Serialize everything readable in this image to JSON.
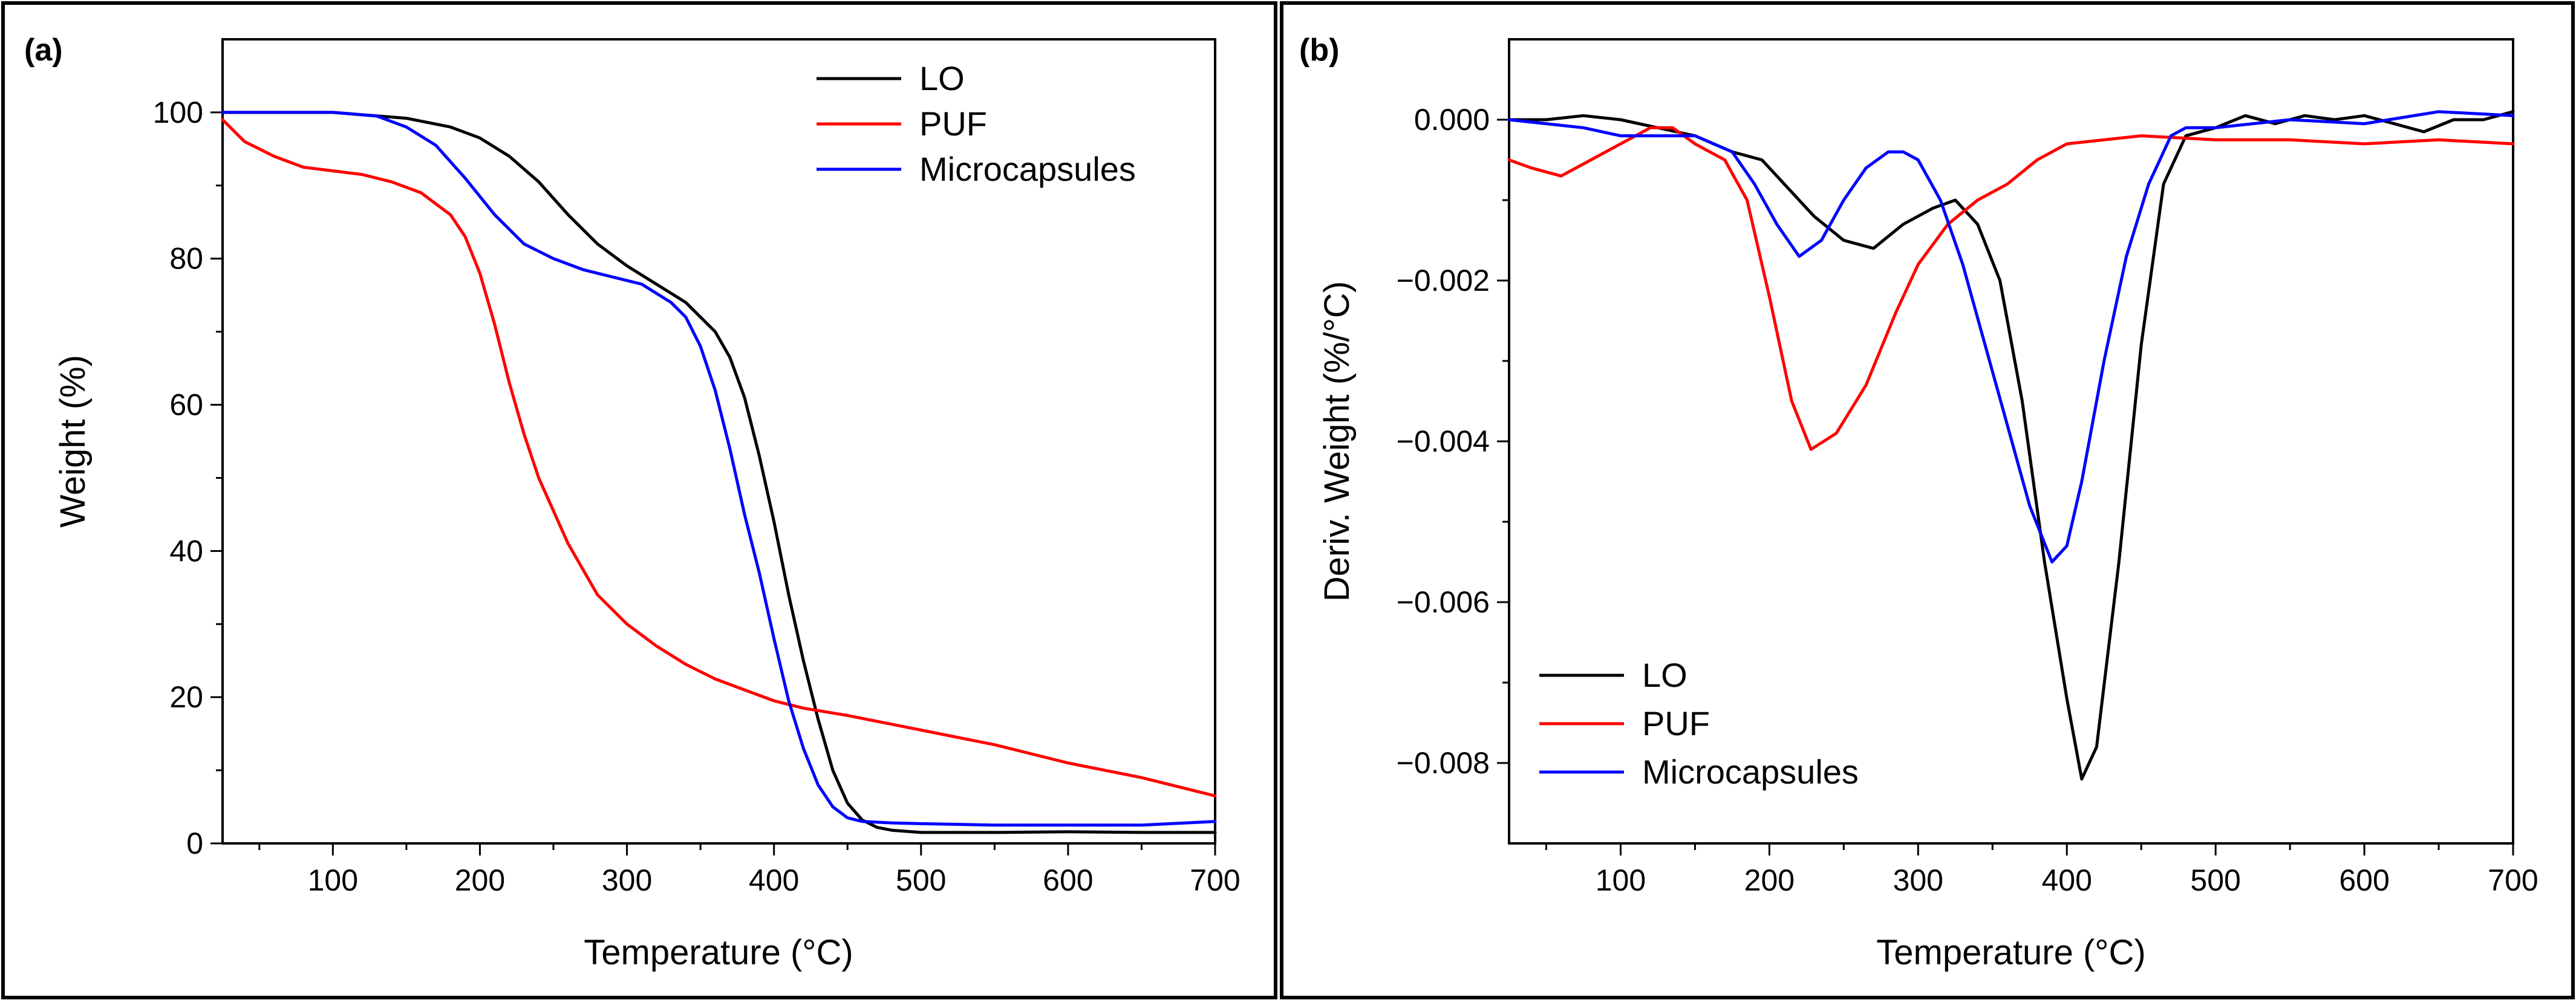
{
  "chart_data": [
    {
      "type": "line",
      "panel_label": "(a)",
      "xlabel": "Temperature (°C)",
      "ylabel": "Weight (%)",
      "xlim": [
        25,
        700
      ],
      "ylim": [
        0,
        110
      ],
      "xticks": [
        100,
        200,
        300,
        400,
        500,
        600,
        700
      ],
      "yticks": [
        0,
        20,
        40,
        60,
        80,
        100
      ],
      "ytick_labels": [
        "0",
        "20",
        "40",
        "60",
        "80",
        "100"
      ],
      "legend_position": "top-right",
      "series": [
        {
          "name": "LO",
          "color": "#000000",
          "x": [
            25,
            50,
            100,
            150,
            180,
            200,
            220,
            240,
            260,
            280,
            300,
            320,
            340,
            360,
            370,
            380,
            390,
            400,
            410,
            420,
            430,
            440,
            450,
            460,
            470,
            480,
            500,
            550,
            600,
            650,
            700
          ],
          "y": [
            100,
            100,
            100,
            99.2,
            98,
            96.5,
            94,
            90.5,
            86,
            82,
            79,
            76.5,
            74,
            70,
            66.5,
            61,
            53,
            44,
            34,
            25,
            17,
            10,
            5.5,
            3.2,
            2.2,
            1.8,
            1.5,
            1.5,
            1.6,
            1.5,
            1.5
          ]
        },
        {
          "name": "PUF",
          "color": "#ff0000",
          "x": [
            25,
            40,
            60,
            80,
            100,
            120,
            140,
            160,
            180,
            190,
            200,
            210,
            220,
            230,
            240,
            260,
            280,
            300,
            320,
            340,
            360,
            380,
            400,
            420,
            450,
            500,
            550,
            600,
            650,
            700
          ],
          "y": [
            99,
            96,
            94,
            92.5,
            92,
            91.5,
            90.5,
            89,
            86,
            83,
            78,
            71,
            63,
            56,
            50,
            41,
            34,
            30,
            27,
            24.5,
            22.5,
            21,
            19.5,
            18.5,
            17.5,
            15.5,
            13.5,
            11,
            9,
            6.5
          ]
        },
        {
          "name": "Microcapsules",
          "color": "#0000ff",
          "x": [
            25,
            50,
            100,
            130,
            150,
            170,
            190,
            210,
            230,
            250,
            270,
            290,
            310,
            330,
            340,
            350,
            360,
            370,
            380,
            390,
            400,
            410,
            420,
            430,
            440,
            450,
            460,
            480,
            500,
            550,
            600,
            650,
            700
          ],
          "y": [
            100,
            100,
            100,
            99.5,
            98,
            95.5,
            91,
            86,
            82,
            80,
            78.5,
            77.5,
            76.5,
            74,
            72,
            68,
            62,
            54,
            45,
            37,
            28,
            19.5,
            13,
            8,
            5,
            3.5,
            3,
            2.8,
            2.7,
            2.5,
            2.5,
            2.5,
            3
          ]
        }
      ]
    },
    {
      "type": "line",
      "panel_label": "(b)",
      "xlabel": "Temperature (°C)",
      "ylabel": "Deriv. Weight (%/°C)",
      "xlim": [
        25,
        700
      ],
      "ylim": [
        -0.009,
        0.001
      ],
      "xticks": [
        100,
        200,
        300,
        400,
        500,
        600,
        700
      ],
      "yticks": [
        0,
        -0.002,
        -0.004,
        -0.006,
        -0.008
      ],
      "ytick_labels": [
        "0.000",
        "−0.002",
        "−0.004",
        "−0.006",
        "−0.008"
      ],
      "legend_position": "bottom-left",
      "series": [
        {
          "name": "LO",
          "color": "#000000",
          "x": [
            25,
            50,
            75,
            100,
            125,
            150,
            175,
            195,
            210,
            230,
            250,
            270,
            290,
            310,
            325,
            340,
            355,
            370,
            385,
            400,
            410,
            420,
            435,
            450,
            465,
            480,
            500,
            520,
            540,
            560,
            580,
            600,
            620,
            640,
            660,
            680,
            700
          ],
          "y": [
            0,
            0,
            5e-05,
            0,
            -0.0001,
            -0.0002,
            -0.0004,
            -0.0005,
            -0.0008,
            -0.0012,
            -0.0015,
            -0.0016,
            -0.0013,
            -0.0011,
            -0.001,
            -0.0013,
            -0.002,
            -0.0035,
            -0.0055,
            -0.0072,
            -0.0082,
            -0.0078,
            -0.0055,
            -0.0028,
            -0.0008,
            -0.0002,
            -0.0001,
            5e-05,
            -5e-05,
            5e-05,
            0,
            5e-05,
            -5e-05,
            -0.00015,
            0,
            0,
            0.0001
          ]
        },
        {
          "name": "PUF",
          "color": "#ff0000",
          "x": [
            25,
            40,
            60,
            80,
            100,
            120,
            135,
            150,
            170,
            185,
            200,
            215,
            228,
            245,
            265,
            285,
            300,
            320,
            340,
            360,
            380,
            400,
            450,
            500,
            550,
            600,
            650,
            700
          ],
          "y": [
            -0.0005,
            -0.0006,
            -0.0007,
            -0.0005,
            -0.0003,
            -0.0001,
            -0.0001,
            -0.0003,
            -0.0005,
            -0.001,
            -0.0022,
            -0.0035,
            -0.0041,
            -0.0039,
            -0.0033,
            -0.0024,
            -0.0018,
            -0.0013,
            -0.001,
            -0.0008,
            -0.0005,
            -0.0003,
            -0.0002,
            -0.00025,
            -0.00025,
            -0.0003,
            -0.00025,
            -0.0003
          ]
        },
        {
          "name": "Microcapsules",
          "color": "#0000ff",
          "x": [
            25,
            50,
            75,
            100,
            125,
            150,
            175,
            190,
            205,
            220,
            235,
            250,
            265,
            280,
            290,
            300,
            315,
            330,
            345,
            360,
            375,
            390,
            400,
            410,
            425,
            440,
            455,
            470,
            480,
            500,
            550,
            600,
            650,
            700
          ],
          "y": [
            0,
            -5e-05,
            -0.0001,
            -0.0002,
            -0.0002,
            -0.0002,
            -0.0004,
            -0.0008,
            -0.0013,
            -0.0017,
            -0.0015,
            -0.001,
            -0.0006,
            -0.0004,
            -0.0004,
            -0.0005,
            -0.001,
            -0.0018,
            -0.0028,
            -0.0038,
            -0.0048,
            -0.0055,
            -0.0053,
            -0.0045,
            -0.003,
            -0.0017,
            -0.0008,
            -0.0002,
            -0.0001,
            -0.0001,
            0,
            -5e-05,
            0.0001,
            5e-05
          ]
        }
      ]
    }
  ]
}
